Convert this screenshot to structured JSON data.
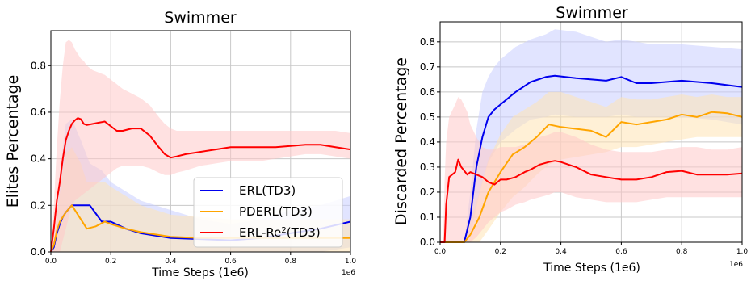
{
  "charts": [
    {
      "title": "Swimmer",
      "xlabel": "Time Steps (1e6)",
      "ylabel": "Elites Percentage",
      "sci_label": "1e6",
      "xlim": [
        0.0,
        1.0
      ],
      "ylim": [
        0.0,
        0.95
      ],
      "xticks": [
        "0.0",
        "0.2",
        "0.4",
        "0.6",
        "0.8",
        "1.0"
      ],
      "yticks": [
        "0.0",
        "0.2",
        "0.4",
        "0.6",
        "0.8"
      ],
      "xtick_values": [
        0.0,
        0.2,
        0.4,
        0.6,
        0.8,
        1.0
      ],
      "ytick_values": [
        0.0,
        0.2,
        0.4,
        0.6,
        0.8
      ]
    },
    {
      "title": "Swimmer",
      "xlabel": "Time Steps (1e6)",
      "ylabel": "Discarded Percentage",
      "sci_label": "1e6",
      "xlim": [
        0.0,
        1.0
      ],
      "ylim": [
        0.0,
        0.88
      ],
      "xticks": [
        "0.0",
        "0.2",
        "0.4",
        "0.6",
        "0.8",
        "1.0"
      ],
      "yticks": [
        "0.0",
        "0.1",
        "0.2",
        "0.3",
        "0.4",
        "0.5",
        "0.6",
        "0.7",
        "0.8"
      ],
      "xtick_values": [
        0.0,
        0.2,
        0.4,
        0.6,
        0.8,
        1.0
      ],
      "ytick_values": [
        0.0,
        0.1,
        0.2,
        0.3,
        0.4,
        0.5,
        0.6,
        0.7,
        0.8
      ]
    }
  ],
  "legend": {
    "entries": [
      {
        "label": "ERL(TD3)",
        "color": "#0000ee"
      },
      {
        "label": "PDERL(TD3)",
        "color": "#ffa500"
      },
      {
        "label": "ERL-Re",
        "sup": "2",
        "suffix": "(TD3)",
        "color": "#ff0000"
      }
    ]
  },
  "colors": {
    "ERL": "#0000ee",
    "PDERL": "#ffa500",
    "ERLRe2": "#ff0000",
    "ERL_band": "#c9cdff",
    "PDERL_band": "#ffe3b5",
    "ERLRe2_band": "#ffc8c8"
  },
  "chart_data": [
    {
      "type": "line",
      "title": "Swimmer",
      "xlabel": "Time Steps (1e6)",
      "ylabel": "Elites Percentage",
      "xlim": [
        0.0,
        1.0
      ],
      "ylim": [
        0.0,
        0.95
      ],
      "grid": true,
      "legend_position": "bottom-right",
      "series": [
        {
          "name": "ERL(TD3)",
          "color": "#0000ee",
          "x": [
            0.0,
            0.01,
            0.02,
            0.03,
            0.04,
            0.05,
            0.07,
            0.1,
            0.13,
            0.17,
            0.2,
            0.25,
            0.3,
            0.4,
            0.5,
            0.6,
            0.7,
            0.8,
            0.9,
            1.0
          ],
          "y": [
            0.0,
            0.02,
            0.08,
            0.12,
            0.15,
            0.17,
            0.2,
            0.2,
            0.2,
            0.13,
            0.13,
            0.1,
            0.08,
            0.06,
            0.055,
            0.05,
            0.06,
            0.08,
            0.1,
            0.13
          ],
          "band_low": [
            0.0,
            0.0,
            0.0,
            0.0,
            0.0,
            0.0,
            0.0,
            0.0,
            0.0,
            0.0,
            0.0,
            0.0,
            0.0,
            0.0,
            0.0,
            0.0,
            0.0,
            0.0,
            0.0,
            0.02
          ],
          "band_high": [
            0.0,
            0.05,
            0.15,
            0.3,
            0.45,
            0.55,
            0.57,
            0.48,
            0.38,
            0.35,
            0.3,
            0.26,
            0.22,
            0.18,
            0.14,
            0.12,
            0.14,
            0.18,
            0.2,
            0.24
          ]
        },
        {
          "name": "PDERL(TD3)",
          "color": "#ffa500",
          "x": [
            0.0,
            0.01,
            0.02,
            0.03,
            0.04,
            0.05,
            0.07,
            0.1,
            0.12,
            0.15,
            0.18,
            0.2,
            0.25,
            0.3,
            0.4,
            0.5,
            0.6,
            0.7,
            0.8,
            0.9,
            1.0
          ],
          "y": [
            0.0,
            0.03,
            0.09,
            0.13,
            0.15,
            0.17,
            0.2,
            0.14,
            0.1,
            0.11,
            0.13,
            0.12,
            0.1,
            0.085,
            0.065,
            0.06,
            0.06,
            0.06,
            0.06,
            0.06,
            0.06
          ],
          "band_low": [
            0.0,
            0.0,
            0.0,
            0.0,
            0.0,
            0.0,
            0.0,
            0.0,
            0.0,
            0.0,
            0.0,
            0.0,
            0.0,
            0.0,
            0.0,
            0.0,
            0.0,
            0.0,
            0.0,
            0.0,
            0.0
          ],
          "band_high": [
            0.0,
            0.05,
            0.15,
            0.25,
            0.35,
            0.42,
            0.45,
            0.38,
            0.3,
            0.3,
            0.3,
            0.28,
            0.24,
            0.2,
            0.16,
            0.15,
            0.14,
            0.14,
            0.14,
            0.14,
            0.14
          ]
        },
        {
          "name": "ERL-Re2(TD3)",
          "color": "#ff0000",
          "x": [
            0.0,
            0.01,
            0.02,
            0.03,
            0.04,
            0.05,
            0.06,
            0.07,
            0.08,
            0.09,
            0.1,
            0.11,
            0.12,
            0.14,
            0.16,
            0.18,
            0.2,
            0.22,
            0.24,
            0.27,
            0.3,
            0.33,
            0.36,
            0.38,
            0.4,
            0.42,
            0.45,
            0.5,
            0.55,
            0.6,
            0.65,
            0.7,
            0.75,
            0.8,
            0.85,
            0.9,
            0.95,
            1.0
          ],
          "y": [
            0.0,
            0.1,
            0.22,
            0.3,
            0.4,
            0.48,
            0.52,
            0.55,
            0.565,
            0.575,
            0.57,
            0.55,
            0.545,
            0.55,
            0.555,
            0.56,
            0.54,
            0.52,
            0.52,
            0.53,
            0.53,
            0.5,
            0.45,
            0.42,
            0.405,
            0.41,
            0.42,
            0.43,
            0.44,
            0.45,
            0.45,
            0.45,
            0.45,
            0.455,
            0.46,
            0.46,
            0.45,
            0.44
          ],
          "band_low": [
            0.0,
            0.0,
            0.0,
            0.0,
            0.05,
            0.1,
            0.15,
            0.2,
            0.22,
            0.23,
            0.24,
            0.25,
            0.26,
            0.28,
            0.3,
            0.32,
            0.34,
            0.36,
            0.37,
            0.37,
            0.37,
            0.36,
            0.34,
            0.33,
            0.33,
            0.34,
            0.35,
            0.37,
            0.38,
            0.39,
            0.39,
            0.39,
            0.4,
            0.41,
            0.42,
            0.42,
            0.41,
            0.4
          ],
          "band_high": [
            0.0,
            0.2,
            0.45,
            0.65,
            0.8,
            0.9,
            0.91,
            0.9,
            0.87,
            0.85,
            0.83,
            0.82,
            0.8,
            0.78,
            0.77,
            0.76,
            0.74,
            0.72,
            0.7,
            0.68,
            0.66,
            0.63,
            0.58,
            0.55,
            0.53,
            0.52,
            0.52,
            0.52,
            0.52,
            0.52,
            0.52,
            0.52,
            0.52,
            0.52,
            0.52,
            0.52,
            0.52,
            0.51
          ]
        }
      ]
    },
    {
      "type": "line",
      "title": "Swimmer",
      "xlabel": "Time Steps (1e6)",
      "ylabel": "Discarded Percentage",
      "xlim": [
        0.0,
        1.0
      ],
      "ylim": [
        0.0,
        0.88
      ],
      "grid": true,
      "series": [
        {
          "name": "ERL(TD3)",
          "color": "#0000ee",
          "x": [
            0.0,
            0.05,
            0.08,
            0.1,
            0.12,
            0.14,
            0.16,
            0.18,
            0.2,
            0.25,
            0.3,
            0.35,
            0.38,
            0.45,
            0.55,
            0.6,
            0.65,
            0.7,
            0.8,
            0.9,
            1.0
          ],
          "y": [
            0.0,
            0.0,
            0.0,
            0.1,
            0.3,
            0.42,
            0.5,
            0.53,
            0.55,
            0.6,
            0.64,
            0.66,
            0.665,
            0.655,
            0.645,
            0.66,
            0.635,
            0.635,
            0.645,
            0.635,
            0.62
          ],
          "band_low": [
            0.0,
            0.0,
            0.0,
            0.02,
            0.14,
            0.24,
            0.32,
            0.36,
            0.4,
            0.45,
            0.49,
            0.5,
            0.51,
            0.5,
            0.5,
            0.51,
            0.5,
            0.5,
            0.5,
            0.49,
            0.47
          ],
          "band_high": [
            0.0,
            0.0,
            0.0,
            0.2,
            0.45,
            0.6,
            0.66,
            0.7,
            0.73,
            0.78,
            0.81,
            0.83,
            0.85,
            0.84,
            0.8,
            0.81,
            0.8,
            0.79,
            0.79,
            0.78,
            0.77
          ]
        },
        {
          "name": "PDERL(TD3)",
          "color": "#ffa500",
          "x": [
            0.0,
            0.05,
            0.08,
            0.1,
            0.13,
            0.16,
            0.2,
            0.24,
            0.28,
            0.32,
            0.36,
            0.4,
            0.5,
            0.55,
            0.6,
            0.65,
            0.7,
            0.75,
            0.8,
            0.85,
            0.9,
            0.95,
            1.0
          ],
          "y": [
            0.0,
            0.0,
            0.0,
            0.03,
            0.1,
            0.2,
            0.28,
            0.35,
            0.38,
            0.42,
            0.47,
            0.46,
            0.445,
            0.42,
            0.48,
            0.47,
            0.48,
            0.49,
            0.51,
            0.5,
            0.52,
            0.515,
            0.5
          ],
          "band_low": [
            0.0,
            0.0,
            0.0,
            0.0,
            0.0,
            0.05,
            0.12,
            0.18,
            0.22,
            0.27,
            0.31,
            0.33,
            0.35,
            0.36,
            0.38,
            0.38,
            0.39,
            0.4,
            0.41,
            0.42,
            0.42,
            0.42,
            0.42
          ],
          "band_high": [
            0.0,
            0.0,
            0.0,
            0.08,
            0.2,
            0.33,
            0.43,
            0.5,
            0.53,
            0.56,
            0.6,
            0.6,
            0.56,
            0.54,
            0.58,
            0.57,
            0.57,
            0.58,
            0.59,
            0.58,
            0.59,
            0.58,
            0.58
          ]
        },
        {
          "name": "ERL-Re2(TD3)",
          "color": "#ff0000",
          "x": [
            0.0,
            0.01,
            0.015,
            0.02,
            0.03,
            0.05,
            0.06,
            0.07,
            0.09,
            0.1,
            0.12,
            0.14,
            0.16,
            0.18,
            0.2,
            0.22,
            0.25,
            0.28,
            0.3,
            0.33,
            0.36,
            0.38,
            0.4,
            0.45,
            0.5,
            0.55,
            0.6,
            0.65,
            0.7,
            0.75,
            0.8,
            0.85,
            0.9,
            0.95,
            1.0
          ],
          "y": [
            0.0,
            0.0,
            0.0,
            0.15,
            0.26,
            0.28,
            0.33,
            0.3,
            0.27,
            0.28,
            0.27,
            0.26,
            0.24,
            0.23,
            0.25,
            0.25,
            0.26,
            0.28,
            0.29,
            0.31,
            0.32,
            0.325,
            0.32,
            0.3,
            0.27,
            0.26,
            0.25,
            0.25,
            0.26,
            0.28,
            0.285,
            0.27,
            0.27,
            0.27,
            0.275
          ],
          "band_low": [
            0.0,
            0.0,
            0.0,
            0.0,
            0.0,
            0.0,
            0.0,
            0.0,
            0.0,
            0.0,
            0.02,
            0.05,
            0.08,
            0.1,
            0.12,
            0.13,
            0.15,
            0.16,
            0.17,
            0.18,
            0.19,
            0.2,
            0.2,
            0.18,
            0.17,
            0.16,
            0.16,
            0.16,
            0.17,
            0.18,
            0.18,
            0.18,
            0.18,
            0.18,
            0.18
          ],
          "band_high": [
            0.0,
            0.0,
            0.25,
            0.4,
            0.5,
            0.55,
            0.58,
            0.57,
            0.52,
            0.47,
            0.42,
            0.38,
            0.37,
            0.37,
            0.38,
            0.38,
            0.38,
            0.39,
            0.4,
            0.42,
            0.43,
            0.44,
            0.44,
            0.42,
            0.39,
            0.37,
            0.36,
            0.36,
            0.36,
            0.37,
            0.38,
            0.38,
            0.37,
            0.37,
            0.38
          ]
        }
      ]
    }
  ]
}
